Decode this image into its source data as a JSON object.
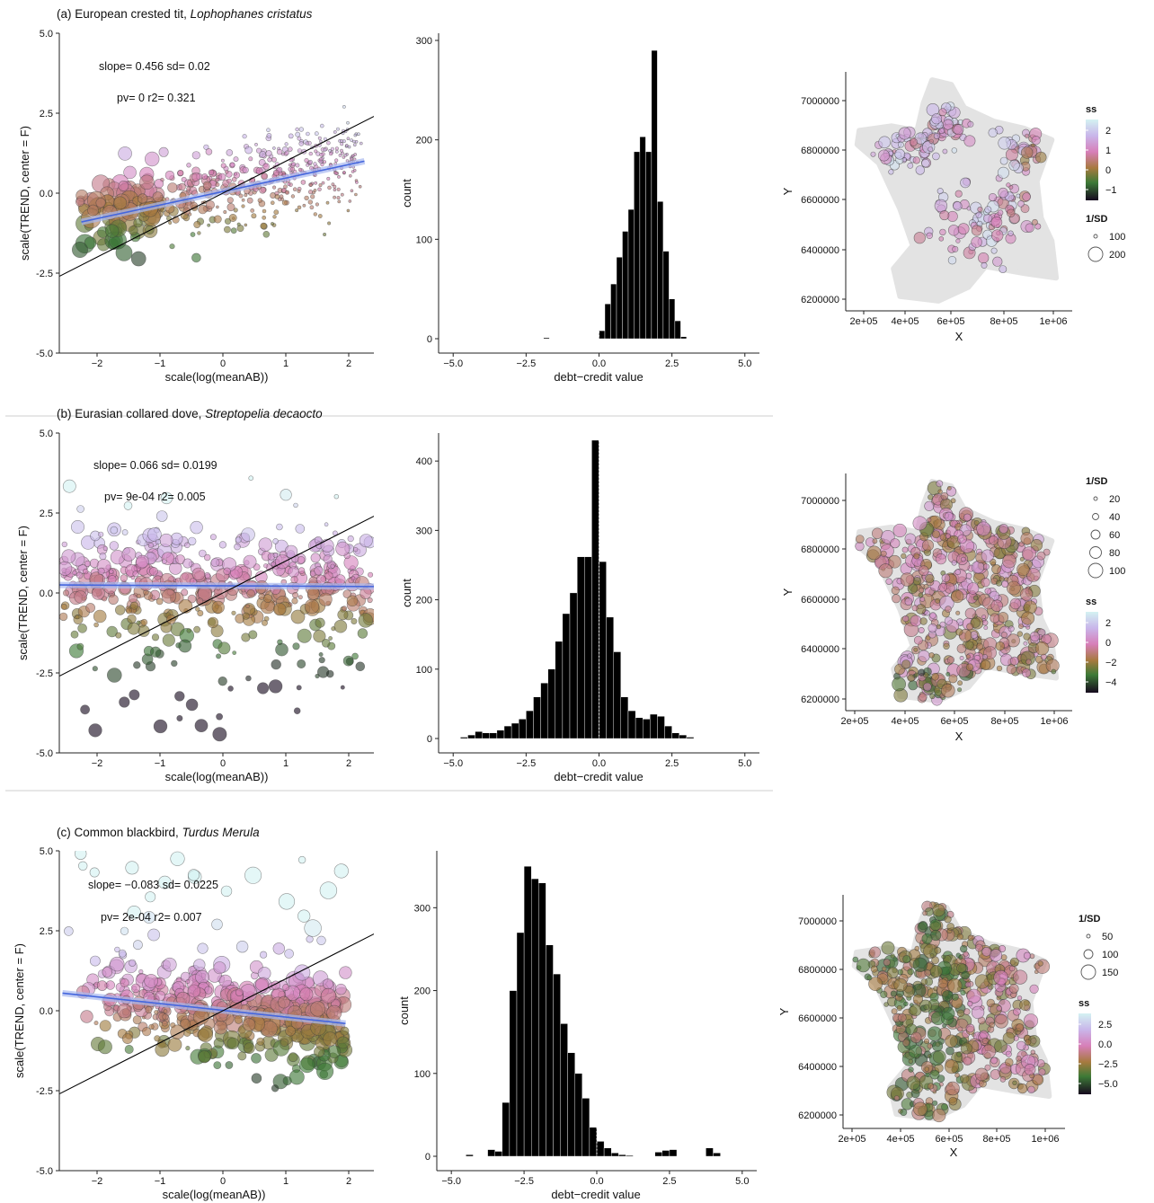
{
  "panels": [
    {
      "title_prefix": "(a) European crested tit, ",
      "title_species": "Lophophanes cristatus",
      "scatter": {
        "type": "scatter",
        "xlabel": "scale(log(meanAB))",
        "ylabel": "scale(TREND, center = F)",
        "xlim": [
          -2.6,
          2.4
        ],
        "ylim": [
          -5.0,
          5.0
        ],
        "xticks": [
          -2,
          -1,
          0,
          1,
          2
        ],
        "yticks": [
          5.0,
          2.5,
          0.0,
          -2.5,
          -5.0
        ],
        "ytick_labels": [
          "5.0",
          "2.5",
          "0.0",
          "-2.5",
          "-5.0"
        ],
        "annotation1": "slope= 0.456  sd= 0.02",
        "annotation2": "pv= 0  r2= 0.321",
        "fit_line": {
          "x": [
            -2.25,
            2.25
          ],
          "y": [
            -0.9,
            1.0
          ]
        },
        "identity_line": {
          "x": [
            -2.6,
            2.4
          ],
          "y": [
            -2.6,
            2.4
          ]
        }
      },
      "histogram": {
        "type": "bar",
        "xlabel": "debt−credit value",
        "ylabel": "count",
        "xlim": [
          -5.5,
          5.5
        ],
        "ylim": [
          0,
          300
        ],
        "xticks": [
          -5.0,
          -2.5,
          0.0,
          2.5,
          5.0
        ],
        "xtick_labels": [
          "−5.0",
          "−2.5",
          "0.0",
          "2.5",
          "5.0"
        ],
        "yticks": [
          0,
          100,
          200,
          300
        ],
        "bin_width": 0.2,
        "bin_starts": [
          -1.9,
          0.0,
          0.2,
          0.4,
          0.6,
          0.8,
          1.0,
          1.2,
          1.4,
          1.6,
          1.8,
          2.0,
          2.2,
          2.4,
          2.6,
          2.8
        ],
        "counts": [
          1,
          8,
          35,
          55,
          82,
          108,
          130,
          188,
          203,
          188,
          290,
          138,
          88,
          40,
          18,
          2
        ]
      },
      "map": {
        "type": "scatter",
        "xlabel": "X",
        "ylabel": "Y",
        "xticks": [
          "2e+05",
          "4e+05",
          "6e+05",
          "8e+05",
          "1e+06"
        ],
        "yticks": [
          "7000000",
          "6800000",
          "6600000",
          "6400000",
          "6200000"
        ],
        "legend_order": [
          "ss",
          "size"
        ],
        "ss_legend": {
          "title": "ss",
          "labels": [
            "2",
            "1",
            "0",
            "−1"
          ]
        },
        "size_legend": {
          "title": "1/SD",
          "labels": [
            "100",
            "200"
          ]
        }
      }
    },
    {
      "title_prefix": "(b) Eurasian collared dove, ",
      "title_species": "Streptopelia decaocto",
      "scatter": {
        "type": "scatter",
        "xlabel": "scale(log(meanAB))",
        "ylabel": "scale(TREND, center = F)",
        "xlim": [
          -2.6,
          2.4
        ],
        "ylim": [
          -5.0,
          5.0
        ],
        "xticks": [
          -2,
          -1,
          0,
          1,
          2
        ],
        "yticks": [
          5.0,
          2.5,
          0.0,
          -2.5,
          -5.0
        ],
        "ytick_labels": [
          "5.0",
          "2.5",
          "0.0",
          "-2.5",
          "-5.0"
        ],
        "annotation1": "slope= 0.066  sd= 0.0199",
        "annotation2": "pv= 9e-04  r2= 0.005",
        "fit_line": {
          "x": [
            -2.6,
            2.4
          ],
          "y": [
            0.25,
            0.2
          ]
        },
        "identity_line": {
          "x": [
            -2.6,
            2.4
          ],
          "y": [
            -2.6,
            2.4
          ]
        }
      },
      "histogram": {
        "type": "bar",
        "xlabel": "debt−credit value",
        "ylabel": "count",
        "xlim": [
          -5.5,
          5.5
        ],
        "ylim": [
          0,
          430
        ],
        "xticks": [
          -5.0,
          -2.5,
          0.0,
          2.5,
          5.0
        ],
        "xtick_labels": [
          "−5.0",
          "−2.5",
          "0.0",
          "2.5",
          "5.0"
        ],
        "yticks": [
          0,
          100,
          200,
          300,
          400
        ],
        "bin_width": 0.25,
        "bin_starts": [
          -4.75,
          -4.5,
          -4.25,
          -4.0,
          -3.75,
          -3.5,
          -3.25,
          -3.0,
          -2.75,
          -2.5,
          -2.25,
          -2.0,
          -1.75,
          -1.5,
          -1.25,
          -1.0,
          -0.75,
          -0.5,
          -0.25,
          0.0,
          0.25,
          0.5,
          0.75,
          1.0,
          1.25,
          1.5,
          1.75,
          2.0,
          2.25,
          2.5,
          2.75,
          3.0
        ],
        "counts": [
          2,
          5,
          10,
          8,
          8,
          12,
          18,
          22,
          28,
          40,
          60,
          80,
          100,
          140,
          180,
          210,
          262,
          262,
          430,
          255,
          175,
          125,
          60,
          40,
          30,
          28,
          35,
          32,
          18,
          8,
          5,
          2
        ]
      },
      "map": {
        "type": "scatter",
        "xlabel": "X",
        "ylabel": "Y",
        "xticks": [
          "2e+05",
          "4e+05",
          "6e+05",
          "8e+05",
          "1e+06"
        ],
        "yticks": [
          "7000000",
          "6800000",
          "6600000",
          "6400000",
          "6200000"
        ],
        "legend_order": [
          "size",
          "ss"
        ],
        "ss_legend": {
          "title": "ss",
          "labels": [
            "2",
            "0",
            "−2",
            "−4"
          ]
        },
        "size_legend": {
          "title": "1/SD",
          "labels": [
            "20",
            "40",
            "60",
            "80",
            "100"
          ]
        }
      }
    },
    {
      "title_prefix": "(c) Common blackbird, ",
      "title_species": "Turdus Merula",
      "scatter": {
        "type": "scatter",
        "xlabel": "scale(log(meanAB))",
        "ylabel": "scale(TREND, center = F)",
        "xlim": [
          -2.6,
          2.4
        ],
        "ylim": [
          -5.0,
          5.0
        ],
        "xticks": [
          -2,
          -1,
          0,
          1,
          2
        ],
        "yticks": [
          5.0,
          2.5,
          0.0,
          -2.5,
          -5.0
        ],
        "ytick_labels": [
          "5.0",
          "2.5",
          "0.0",
          "-2.5",
          "-5.0"
        ],
        "annotation1": "slope= −0.083  sd= 0.0225",
        "annotation2": "pv= 2e-04  r2= 0.007",
        "fit_line": {
          "x": [
            -2.55,
            1.95
          ],
          "y": [
            0.55,
            -0.4
          ]
        },
        "identity_line": {
          "x": [
            -2.6,
            2.4
          ],
          "y": [
            -2.6,
            2.4
          ]
        }
      },
      "histogram": {
        "type": "bar",
        "xlabel": "debt−credit value",
        "ylabel": "count",
        "xlim": [
          -5.5,
          5.5
        ],
        "ylim": [
          0,
          360
        ],
        "xticks": [
          -5.0,
          -2.5,
          0.0,
          2.5,
          5.0
        ],
        "xtick_labels": [
          "−5.0",
          "−2.5",
          "0.0",
          "2.5",
          "5.0"
        ],
        "yticks": [
          0,
          100,
          200,
          300
        ],
        "bin_width": 0.25,
        "bin_starts": [
          -4.5,
          -3.75,
          -3.5,
          -3.25,
          -3.0,
          -2.75,
          -2.5,
          -2.25,
          -2.0,
          -1.75,
          -1.5,
          -1.25,
          -1.0,
          -0.75,
          -0.5,
          -0.25,
          0.0,
          0.25,
          0.5,
          0.75,
          1.0,
          2.0,
          2.25,
          2.5,
          3.75,
          4.0
        ],
        "counts": [
          2,
          8,
          6,
          65,
          200,
          270,
          350,
          335,
          330,
          255,
          220,
          160,
          125,
          100,
          70,
          35,
          18,
          10,
          4,
          2,
          1,
          5,
          7,
          8,
          10,
          4
        ]
      },
      "map": {
        "type": "scatter",
        "xlabel": "X",
        "ylabel": "Y",
        "xticks": [
          "2e+05",
          "4e+05",
          "6e+05",
          "8e+05",
          "1e+06"
        ],
        "yticks": [
          "7000000",
          "6800000",
          "6600000",
          "6400000",
          "6200000"
        ],
        "legend_order": [
          "size",
          "ss"
        ],
        "ss_legend": {
          "title": "ss",
          "labels": [
            "2.5",
            "0.0",
            "−2.5",
            "−5.0"
          ]
        },
        "size_legend": {
          "title": "1/SD",
          "labels": [
            "50",
            "100",
            "150"
          ]
        }
      }
    }
  ]
}
